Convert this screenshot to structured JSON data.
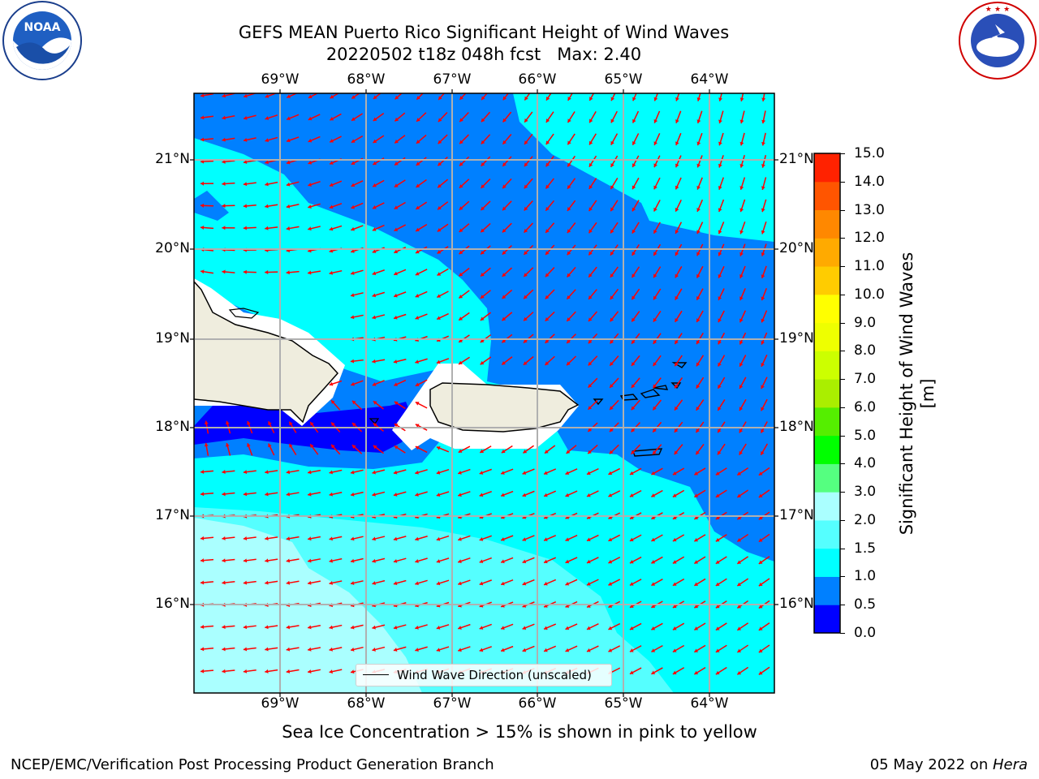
{
  "header": {
    "title_line1": "GEFS MEAN Puerto Rico Significant Height of Wind Waves",
    "title_line2": "20220502 t18z 048h fcst   Max: 2.40"
  },
  "logos": {
    "left": {
      "name": "noaa-logo",
      "text": "NOAA",
      "ring_text": "NATIONAL OCEANIC AND ATMOSPHERIC ADMINISTRATION · U.S. DEPARTMENT OF COMMERCE"
    },
    "right": {
      "name": "nws-logo",
      "ring_text": "NATIONAL WEATHER SERVICE"
    }
  },
  "map": {
    "lon_labels": [
      "69°W",
      "68°W",
      "67°W",
      "66°W",
      "65°W",
      "64°W"
    ],
    "lat_labels": [
      "21°N",
      "20°N",
      "19°N",
      "18°N",
      "17°N",
      "16°N"
    ],
    "colors": {
      "c0": "#0000ff",
      "c05": "#0080ff",
      "c10": "#00ffff",
      "c15": "#55ffff",
      "c20": "#aaffff",
      "land": "#efedde",
      "arrow": "#ff0000",
      "grid": "#b0b0b0"
    },
    "legend_label": "Wind Wave Direction (unscaled)"
  },
  "colorbar": {
    "label": "Significant Height of Wind Waves [m]",
    "ticks": [
      "15.0",
      "14.0",
      "13.0",
      "12.0",
      "11.0",
      "10.0",
      "9.0",
      "8.0",
      "7.0",
      "6.0",
      "5.0",
      "4.0",
      "3.0",
      "2.0",
      "1.5",
      "1.0",
      "0.5",
      "0.0"
    ],
    "colors": [
      "#0000ff",
      "#0080ff",
      "#00ffff",
      "#55ffff",
      "#aaffff",
      "#55ff80",
      "#00ff00",
      "#55ee00",
      "#aaee00",
      "#ccff00",
      "#eeff00",
      "#ffff00",
      "#ffcc00",
      "#ffaa00",
      "#ff8800",
      "#ff5500",
      "#ff2200"
    ]
  },
  "footer": {
    "note": "Sea Ice Concentration > 15% is shown in pink to yellow",
    "branch": "NCEP/EMC/Verification Post Processing Product Generation Branch",
    "date": "05 May 2022 on ",
    "host": "Hera"
  }
}
